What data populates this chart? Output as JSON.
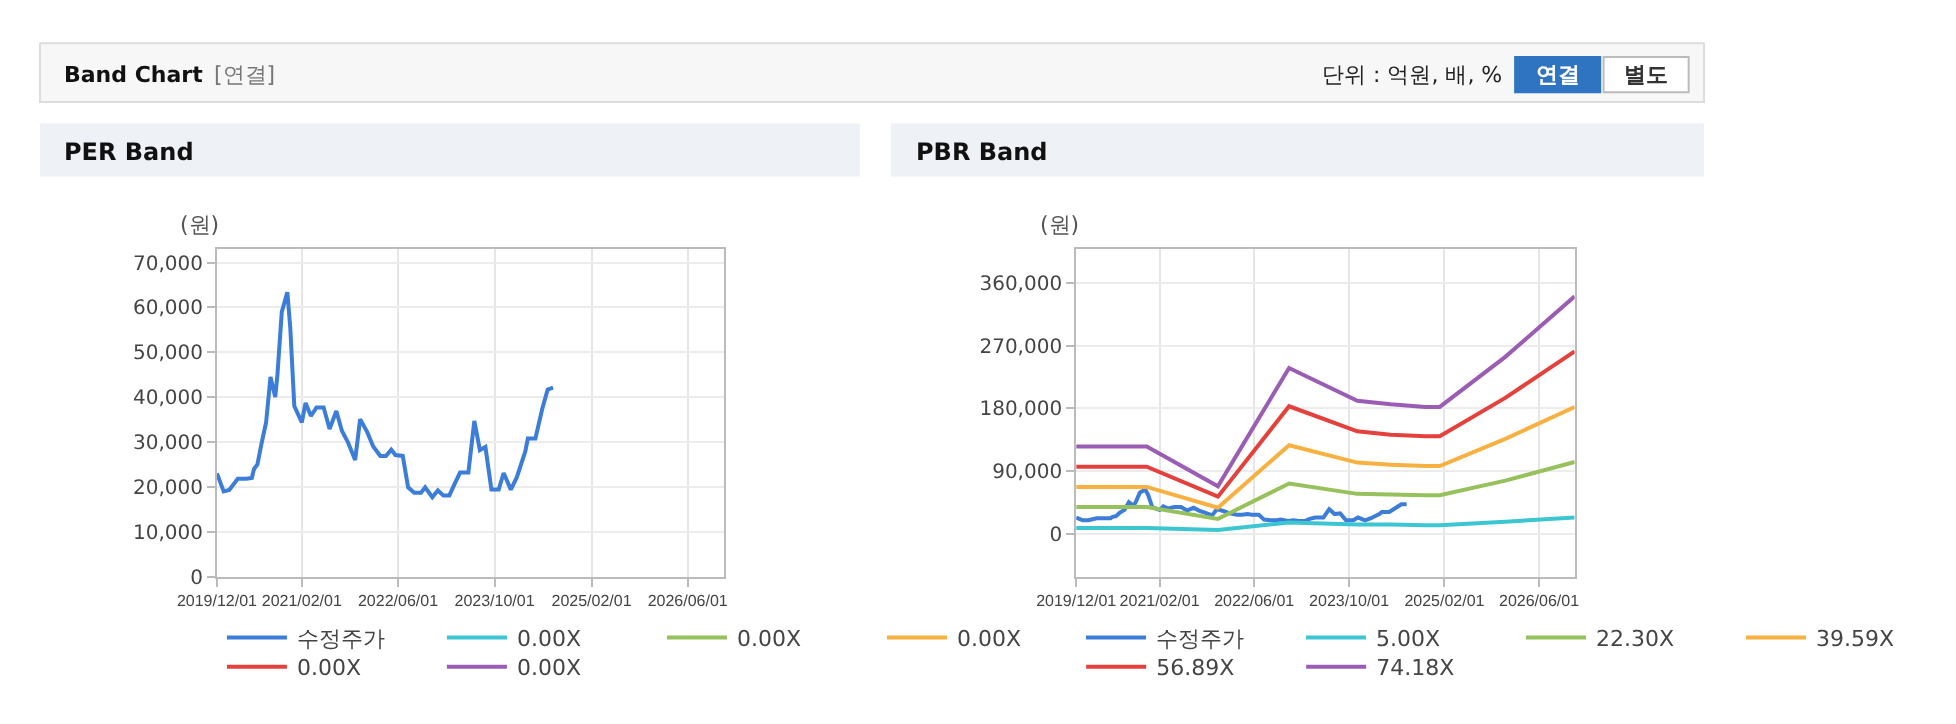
{
  "chart_data": [
    {
      "type": "other",
      "title": "Band Chart",
      "annotations": [
        "[연결]",
        "단위 : 억원, 배, %",
        "연결",
        "별도"
      ]
    },
    {
      "type": "line",
      "title": "PER Band",
      "ylabel": "(원)",
      "grid": true,
      "legend": "bottom",
      "marker": "none",
      "line_style": "solid",
      "xlim": [
        "2019-12-01",
        "2026-12-01"
      ],
      "ylim": [
        0,
        73000
      ],
      "xticks": [
        {
          "value": "2019-12-01",
          "label": "2019/12/01"
        },
        {
          "value": "2021-02-01",
          "label": "2021/02/01"
        },
        {
          "value": "2022-06-01",
          "label": "2022/06/01"
        },
        {
          "value": "2023-10-01",
          "label": "2023/10/01"
        },
        {
          "value": "2025-02-01",
          "label": "2025/02/01"
        },
        {
          "value": "2026-06-01",
          "label": "2026/06/01"
        }
      ],
      "yticks": [
        {
          "value": 0,
          "label": "0"
        },
        {
          "value": 10000,
          "label": "10,000"
        },
        {
          "value": 20000,
          "label": "20,000"
        },
        {
          "value": 30000,
          "label": "30,000"
        },
        {
          "value": 40000,
          "label": "40,000"
        },
        {
          "value": 50000,
          "label": "50,000"
        },
        {
          "value": 60000,
          "label": "60,000"
        },
        {
          "value": 70000,
          "label": "70,000"
        }
      ],
      "series": [
        {
          "name": "수정주가",
          "color": "#3b7dd8",
          "x": [
            "2019-12-01",
            "2020-01-04",
            "2020-02-01",
            "2020-03-15",
            "2020-04-27",
            "2020-05-25",
            "2020-06-05",
            "2020-06-22",
            "2020-07-12",
            "2020-08-05",
            "2020-08-27",
            "2020-09-20",
            "2020-10-01",
            "2020-10-23",
            "2020-11-20",
            "2020-12-05",
            "2020-12-25",
            "2021-02-01",
            "2021-02-20",
            "2021-03-19",
            "2021-04-16",
            "2021-05-22",
            "2021-06-21",
            "2021-07-25",
            "2021-08-22",
            "2021-09-21",
            "2021-10-28",
            "2021-11-22",
            "2021-12-28",
            "2022-01-27",
            "2022-03-04",
            "2022-04-01",
            "2022-04-28",
            "2022-05-19",
            "2022-06-25",
            "2022-07-22",
            "2022-08-22",
            "2022-09-25",
            "2022-10-16",
            "2022-11-21",
            "2022-12-19",
            "2023-01-16",
            "2023-02-15",
            "2023-03-13",
            "2023-04-10",
            "2023-05-22",
            "2023-06-21",
            "2023-07-19",
            "2023-08-16",
            "2023-09-15",
            "2023-10-22",
            "2023-11-16",
            "2023-12-22",
            "2024-01-21",
            "2024-03-04",
            "2024-03-17",
            "2024-04-24",
            "2024-05-28",
            "2024-06-25",
            "2024-07-22"
          ],
          "values": [
            23000,
            19000,
            19300,
            21800,
            21800,
            22000,
            24000,
            25000,
            29500,
            34400,
            44500,
            40000,
            45000,
            59000,
            63400,
            55400,
            38000,
            34400,
            38700,
            35800,
            37700,
            37700,
            32900,
            36900,
            32500,
            30000,
            26000,
            35100,
            32200,
            29000,
            26900,
            26900,
            28300,
            27100,
            26900,
            19900,
            18700,
            18700,
            19900,
            17700,
            19200,
            18100,
            18100,
            20600,
            23200,
            23200,
            34700,
            28200,
            28900,
            19400,
            19400,
            23100,
            19400,
            22100,
            27900,
            30800,
            30800,
            37300,
            41700,
            42100
          ]
        },
        {
          "name": "0.00X",
          "color": "#3cc6d2"
        },
        {
          "name": "0.00X",
          "color": "#96c15c"
        },
        {
          "name": "0.00X",
          "color": "#f7b140"
        },
        {
          "name": "0.00X",
          "color": "#e5413c"
        },
        {
          "name": "0.00X",
          "color": "#9b5cb4"
        }
      ]
    },
    {
      "type": "line",
      "title": "PBR Band",
      "ylabel": "(원)",
      "grid": true,
      "legend": "bottom",
      "marker": "none",
      "line_style": "solid",
      "xlim": [
        "2019-12-01",
        "2026-12-01"
      ],
      "ylim": [
        -62000,
        409000
      ],
      "xticks": [
        {
          "value": "2019-12-01",
          "label": "2019/12/01"
        },
        {
          "value": "2021-02-01",
          "label": "2021/02/01"
        },
        {
          "value": "2022-06-01",
          "label": "2022/06/01"
        },
        {
          "value": "2023-10-01",
          "label": "2023/10/01"
        },
        {
          "value": "2025-02-01",
          "label": "2025/02/01"
        },
        {
          "value": "2026-06-01",
          "label": "2026/06/01"
        }
      ],
      "yticks": [
        {
          "value": 0,
          "label": "0"
        },
        {
          "value": 90000,
          "label": "90,000"
        },
        {
          "value": 180000,
          "label": "180,000"
        },
        {
          "value": 270000,
          "label": "270,000"
        },
        {
          "value": 360000,
          "label": "360,000"
        }
      ],
      "series": [
        {
          "name": "수정주가",
          "color": "#3b7dd8",
          "x": [
            "2019-12-01",
            "2020-01-04",
            "2020-02-01",
            "2020-03-15",
            "2020-04-27",
            "2020-05-25",
            "2020-06-05",
            "2020-06-22",
            "2020-07-12",
            "2020-08-05",
            "2020-08-27",
            "2020-09-20",
            "2020-10-01",
            "2020-10-23",
            "2020-11-20",
            "2020-12-05",
            "2020-12-25",
            "2021-02-01",
            "2021-02-20",
            "2021-03-19",
            "2021-04-16",
            "2021-05-22",
            "2021-06-21",
            "2021-07-25",
            "2021-08-22",
            "2021-09-21",
            "2021-10-28",
            "2021-11-22",
            "2021-12-28",
            "2022-01-27",
            "2022-03-04",
            "2022-04-01",
            "2022-04-28",
            "2022-05-19",
            "2022-06-25",
            "2022-07-22",
            "2022-08-22",
            "2022-09-25",
            "2022-10-16",
            "2022-11-21",
            "2022-12-19",
            "2023-01-16",
            "2023-02-15",
            "2023-03-13",
            "2023-04-10",
            "2023-05-22",
            "2023-06-21",
            "2023-07-19",
            "2023-08-16",
            "2023-09-15",
            "2023-10-22",
            "2023-11-16",
            "2023-12-22",
            "2024-01-21",
            "2024-03-04",
            "2024-03-17",
            "2024-04-24",
            "2024-05-28",
            "2024-06-25",
            "2024-07-22"
          ],
          "values": [
            23000,
            19000,
            19000,
            22000,
            22000,
            22000,
            24000,
            25000,
            30000,
            34000,
            45000,
            40000,
            45000,
            59000,
            63000,
            55000,
            38000,
            34000,
            39000,
            36000,
            38000,
            38000,
            33000,
            37000,
            33000,
            30000,
            26000,
            35000,
            32000,
            29000,
            27000,
            27000,
            28000,
            27000,
            27000,
            20000,
            19000,
            19000,
            20000,
            18000,
            19000,
            18000,
            18000,
            21000,
            23000,
            23000,
            35000,
            28000,
            29000,
            19000,
            19000,
            23000,
            19000,
            22000,
            28000,
            31000,
            31000,
            37000,
            42000,
            42000
          ]
        },
        {
          "name": "5.00X",
          "color": "#3cc6d2",
          "x": [
            "2019-12-01",
            "2020-11-27",
            "2021-11-27",
            "2022-11-27",
            "2023-11-12",
            "2024-05-01",
            "2024-10-27",
            "2025-01-08",
            "2025-12-10",
            "2026-12-01"
          ],
          "values": [
            8000,
            8000,
            5000,
            16000,
            13000,
            13000,
            12000,
            12000,
            17000,
            23000
          ]
        },
        {
          "name": "22.30X",
          "color": "#96c15c",
          "x": [
            "2019-12-01",
            "2020-11-27",
            "2021-11-27",
            "2022-11-27",
            "2023-11-12",
            "2024-05-01",
            "2024-10-27",
            "2025-01-08",
            "2025-12-10",
            "2026-12-01"
          ],
          "values": [
            38000,
            38000,
            21000,
            72000,
            57000,
            56000,
            55000,
            55000,
            76000,
            103000
          ]
        },
        {
          "name": "39.59X",
          "color": "#f7b140",
          "x": [
            "2019-12-01",
            "2020-11-27",
            "2021-11-27",
            "2022-11-27",
            "2023-11-12",
            "2024-05-01",
            "2024-10-27",
            "2025-01-08",
            "2025-12-10",
            "2026-12-01"
          ],
          "values": [
            67000,
            67000,
            37000,
            127000,
            102000,
            99000,
            97000,
            97000,
            136000,
            182000
          ]
        },
        {
          "name": "56.89X",
          "color": "#e5413c",
          "x": [
            "2019-12-01",
            "2020-11-27",
            "2021-11-27",
            "2022-11-27",
            "2023-11-12",
            "2024-05-01",
            "2024-10-27",
            "2025-01-08",
            "2025-12-10",
            "2026-12-01"
          ],
          "values": [
            96000,
            96000,
            53000,
            183000,
            147000,
            142000,
            140000,
            140000,
            195000,
            262000
          ]
        },
        {
          "name": "74.18X",
          "color": "#9b5cb4",
          "x": [
            "2019-12-01",
            "2020-11-27",
            "2021-11-27",
            "2022-11-27",
            "2023-11-12",
            "2024-05-01",
            "2024-10-27",
            "2025-01-08",
            "2025-12-10",
            "2026-12-01"
          ],
          "values": [
            125000,
            125000,
            68000,
            238000,
            191000,
            186000,
            182000,
            182000,
            254000,
            341000
          ]
        }
      ]
    }
  ]
}
